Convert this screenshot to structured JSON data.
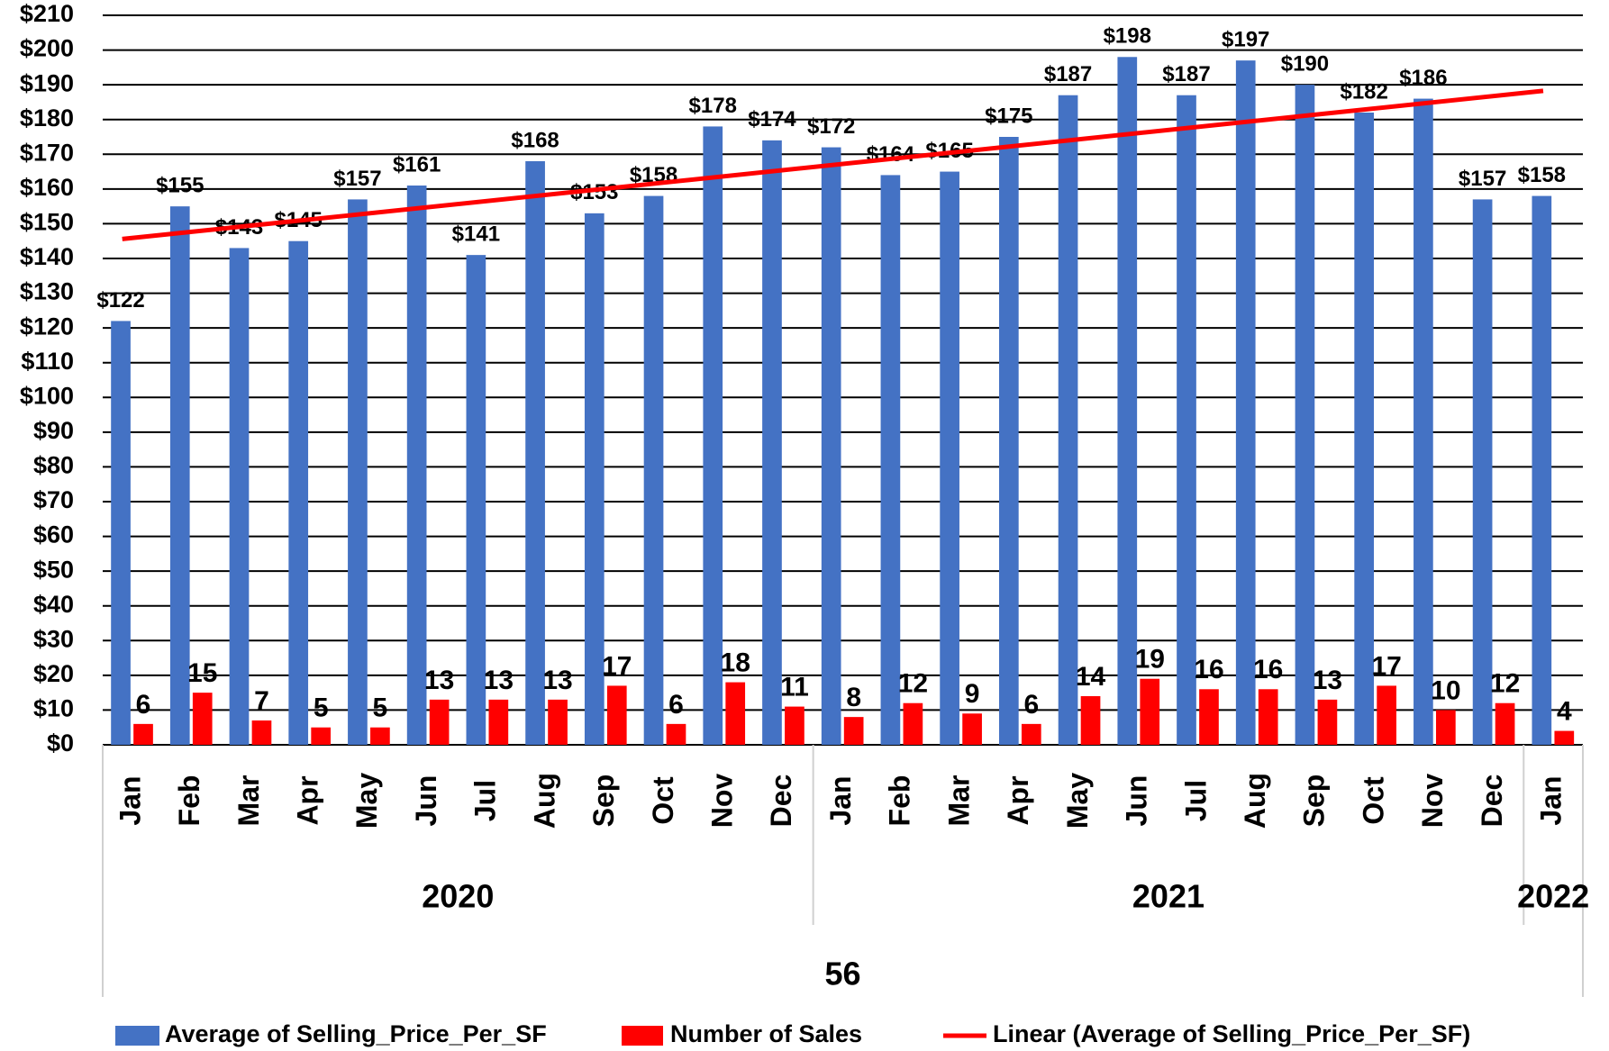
{
  "chart_data": {
    "type": "bar",
    "categories": [
      "Jan",
      "Feb",
      "Mar",
      "Apr",
      "May",
      "Jun",
      "Jul",
      "Aug",
      "Sep",
      "Oct",
      "Nov",
      "Dec",
      "Jan",
      "Feb",
      "Mar",
      "Apr",
      "May",
      "Jun",
      "Jul",
      "Aug",
      "Sep",
      "Oct",
      "Nov",
      "Dec",
      "Jan"
    ],
    "years": [
      "2020",
      "2021",
      "2022"
    ],
    "outer_label": "56",
    "series": [
      {
        "name": "Average of Selling_Price_Per_SF",
        "color": "#4472c4",
        "values": [
          122,
          155,
          143,
          145,
          157,
          161,
          141,
          168,
          153,
          158,
          178,
          174,
          172,
          164,
          165,
          175,
          187,
          198,
          187,
          197,
          190,
          182,
          186,
          157,
          158
        ],
        "value_labels": [
          "$122",
          "$155",
          "$143",
          "$145",
          "$157",
          "$161",
          "$141",
          "$168",
          "$153",
          "$158",
          "$178",
          "$174",
          "$172",
          "$164",
          "$165",
          "$175",
          "$187",
          "$198",
          "$187",
          "$197",
          "$190",
          "$182",
          "$186",
          "$157",
          "$158"
        ]
      },
      {
        "name": "Number of Sales",
        "color": "#ff0000",
        "values": [
          6,
          15,
          7,
          5,
          5,
          13,
          13,
          13,
          17,
          6,
          18,
          11,
          8,
          12,
          9,
          6,
          14,
          19,
          16,
          16,
          13,
          17,
          10,
          12,
          4
        ]
      }
    ],
    "trendline": {
      "name": "Linear (Average of Selling_Price_Per_SF)",
      "color": "#ff0000",
      "series": 0
    },
    "ylim": [
      0,
      210
    ],
    "yticks": [
      {
        "value": 0,
        "label": "$0"
      },
      {
        "value": 10,
        "label": "$10"
      },
      {
        "value": 20,
        "label": "$20"
      },
      {
        "value": 30,
        "label": "$30"
      },
      {
        "value": 40,
        "label": "$40"
      },
      {
        "value": 50,
        "label": "$50"
      },
      {
        "value": 60,
        "label": "$60"
      },
      {
        "value": 70,
        "label": "$70"
      },
      {
        "value": 80,
        "label": "$80"
      },
      {
        "value": 90,
        "label": "$90"
      },
      {
        "value": 100,
        "label": "$100"
      },
      {
        "value": 110,
        "label": "$110"
      },
      {
        "value": 120,
        "label": "$120"
      },
      {
        "value": 130,
        "label": "$130"
      },
      {
        "value": 140,
        "label": "$140"
      },
      {
        "value": 150,
        "label": "$150"
      },
      {
        "value": 160,
        "label": "$160"
      },
      {
        "value": 170,
        "label": "$170"
      },
      {
        "value": 180,
        "label": "$180"
      },
      {
        "value": 190,
        "label": "$190"
      },
      {
        "value": 200,
        "label": "$200"
      },
      {
        "value": 210,
        "label": "$210"
      }
    ],
    "grid": true
  }
}
